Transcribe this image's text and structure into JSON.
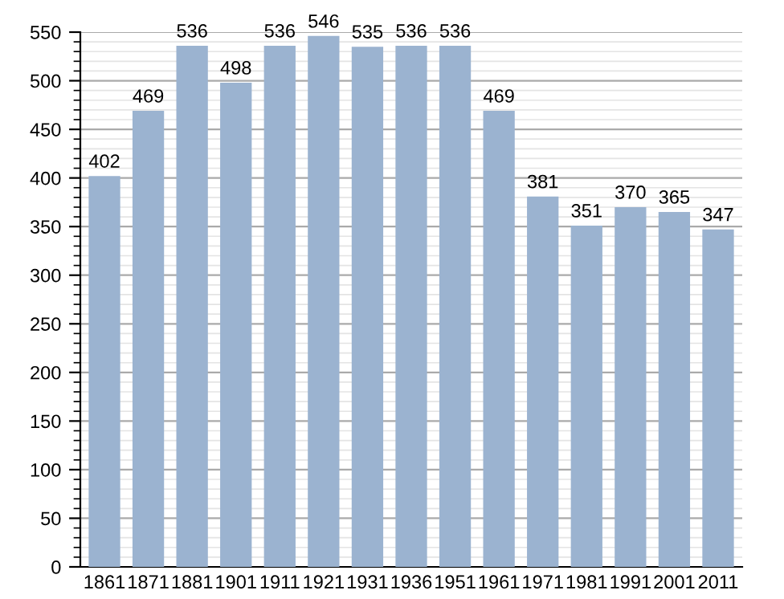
{
  "chart_data": {
    "type": "bar",
    "categories": [
      "1861",
      "1871",
      "1881",
      "1901",
      "1911",
      "1921",
      "1931",
      "1936",
      "1951",
      "1961",
      "1971",
      "1981",
      "1991",
      "2001",
      "2011"
    ],
    "values": [
      402,
      469,
      536,
      498,
      536,
      546,
      535,
      536,
      536,
      469,
      381,
      351,
      370,
      365,
      347
    ],
    "color": "#9bb3d0",
    "ylim": [
      0,
      550
    ],
    "yticks": [
      0,
      50,
      100,
      150,
      200,
      250,
      300,
      350,
      400,
      450,
      500,
      550
    ],
    "grid": "y",
    "data_labels": true
  }
}
